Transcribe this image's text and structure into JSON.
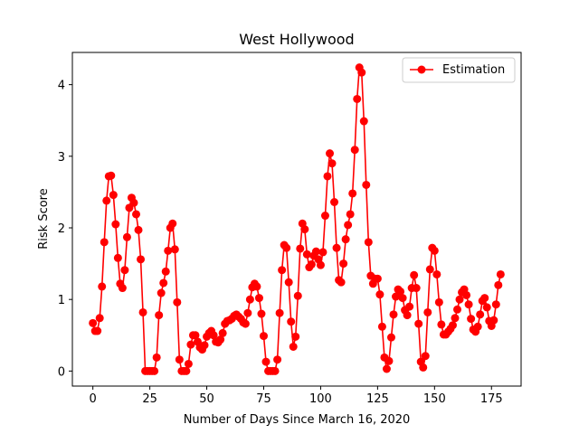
{
  "chart_data": {
    "type": "line",
    "title": "West Hollywood",
    "xlabel": "Number of Days Since March 16, 2020",
    "ylabel": "Risk Score",
    "xlim": [
      -9,
      188
    ],
    "ylim": [
      -0.21,
      4.45
    ],
    "xticks": [
      0,
      25,
      50,
      75,
      100,
      125,
      150,
      175
    ],
    "yticks": [
      0,
      1,
      2,
      3,
      4
    ],
    "grid": false,
    "legend_position": "top-right",
    "series": [
      {
        "name": "Estimation",
        "color": "#ff0000",
        "marker": "circle",
        "x": [
          0,
          1,
          2,
          3,
          4,
          5,
          6,
          7,
          8,
          9,
          10,
          11,
          12,
          13,
          14,
          15,
          16,
          17,
          18,
          19,
          20,
          21,
          22,
          23,
          24,
          25,
          26,
          27,
          28,
          29,
          30,
          31,
          32,
          33,
          34,
          35,
          36,
          37,
          38,
          39,
          40,
          41,
          42,
          43,
          44,
          45,
          46,
          47,
          48,
          49,
          50,
          51,
          52,
          53,
          54,
          55,
          56,
          57,
          58,
          59,
          60,
          61,
          62,
          63,
          64,
          65,
          66,
          67,
          68,
          69,
          70,
          71,
          72,
          73,
          74,
          75,
          76,
          77,
          78,
          79,
          80,
          81,
          82,
          83,
          84,
          85,
          86,
          87,
          88,
          89,
          90,
          91,
          92,
          93,
          94,
          95,
          96,
          97,
          98,
          99,
          100,
          101,
          102,
          103,
          104,
          105,
          106,
          107,
          108,
          109,
          110,
          111,
          112,
          113,
          114,
          115,
          116,
          117,
          118,
          119,
          120,
          121,
          122,
          123,
          124,
          125,
          126,
          127,
          128,
          129,
          130,
          131,
          132,
          133,
          134,
          135,
          136,
          137,
          138,
          139,
          140,
          141,
          142,
          143,
          144,
          145,
          146,
          147,
          148,
          149,
          150,
          151,
          152,
          153,
          154,
          155,
          156,
          157,
          158,
          159,
          160,
          161,
          162,
          163,
          164,
          165,
          166,
          167,
          168,
          169,
          170,
          171,
          172,
          173,
          174,
          175,
          176,
          177,
          178,
          179
        ],
        "y": [
          0.67,
          0.56,
          0.56,
          0.74,
          1.18,
          1.8,
          2.38,
          2.72,
          2.73,
          2.46,
          2.05,
          1.58,
          1.22,
          1.16,
          1.41,
          1.87,
          2.28,
          2.42,
          2.35,
          2.19,
          1.97,
          1.56,
          0.82,
          0.0,
          0.0,
          0.0,
          0.0,
          0.0,
          0.19,
          0.78,
          1.09,
          1.23,
          1.39,
          1.68,
          2.0,
          2.06,
          1.7,
          0.96,
          0.16,
          0.0,
          0.0,
          0.0,
          0.1,
          0.37,
          0.5,
          0.5,
          0.41,
          0.33,
          0.3,
          0.36,
          0.48,
          0.53,
          0.56,
          0.5,
          0.41,
          0.4,
          0.44,
          0.53,
          0.66,
          0.7,
          0.71,
          0.73,
          0.77,
          0.79,
          0.76,
          0.73,
          0.68,
          0.66,
          0.81,
          1.0,
          1.17,
          1.22,
          1.18,
          1.02,
          0.8,
          0.49,
          0.13,
          0.0,
          0.0,
          0.0,
          0.0,
          0.16,
          0.81,
          1.41,
          1.76,
          1.72,
          1.24,
          0.69,
          0.34,
          0.48,
          1.05,
          1.71,
          2.06,
          1.98,
          1.63,
          1.45,
          1.49,
          1.61,
          1.67,
          1.56,
          1.48,
          1.66,
          2.17,
          2.72,
          3.04,
          2.9,
          2.36,
          1.72,
          1.27,
          1.24,
          1.5,
          1.84,
          2.04,
          2.19,
          2.48,
          3.09,
          3.8,
          4.24,
          4.17,
          3.49,
          2.6,
          1.8,
          1.33,
          1.22,
          1.29,
          1.29,
          1.07,
          0.62,
          0.19,
          0.03,
          0.14,
          0.47,
          0.79,
          1.04,
          1.14,
          1.11,
          1.02,
          0.85,
          0.78,
          0.9,
          1.16,
          1.34,
          1.16,
          0.66,
          0.13,
          0.05,
          0.21,
          0.82,
          1.42,
          1.72,
          1.68,
          1.35,
          0.96,
          0.65,
          0.51,
          0.51,
          0.55,
          0.59,
          0.64,
          0.74,
          0.86,
          1.0,
          1.1,
          1.14,
          1.06,
          0.93,
          0.73,
          0.58,
          0.55,
          0.62,
          0.79,
          0.98,
          1.02,
          0.89,
          0.7,
          0.63,
          0.71,
          0.93,
          1.2,
          1.35
        ]
      }
    ]
  }
}
